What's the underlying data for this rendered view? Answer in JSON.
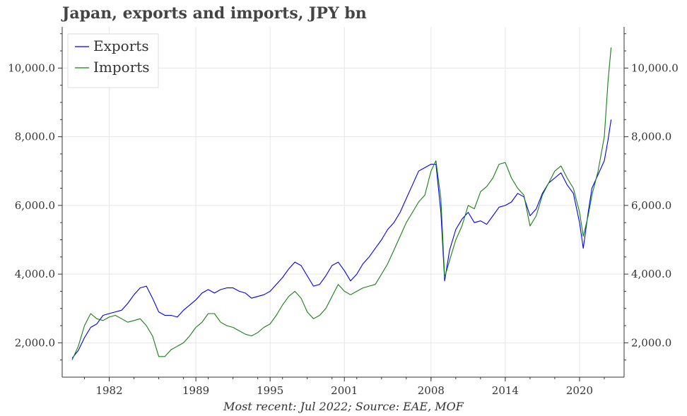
{
  "title": "Japan, exports and imports, JPY bn",
  "caption": "Most recent: Jul 2022; Source: EAE, MOF",
  "chart_data": {
    "type": "line",
    "title": "Japan, exports and imports, JPY bn",
    "xlabel": "",
    "ylabel": "",
    "xlim": [
      1978.2,
      2023.6
    ],
    "ylim": [
      1000,
      11200
    ],
    "x_ticks": [
      1982,
      1989,
      1995,
      2001,
      2008,
      2014,
      2020
    ],
    "x_tick_labels": [
      "1982",
      "1989",
      "1995",
      "2001",
      "2008",
      "2014",
      "2020"
    ],
    "y_ticks": [
      2000,
      4000,
      6000,
      8000,
      10000
    ],
    "y_tick_labels": [
      "2,000.0",
      "4,000.0",
      "6,000.0",
      "8,000.0",
      "10,000.0"
    ],
    "y_axis_both_sides": true,
    "grid": true,
    "legend": "top-left",
    "colors": {
      "exports": "#0000ee",
      "imports": "#138013"
    },
    "series": [
      {
        "name": "Exports",
        "color": "#0000ee",
        "x": [
          1979.0,
          1979.5,
          1980.0,
          1980.5,
          1981.0,
          1981.5,
          1982.0,
          1982.5,
          1983.0,
          1983.5,
          1984.0,
          1984.5,
          1985.0,
          1985.5,
          1986.0,
          1986.5,
          1987.0,
          1987.5,
          1988.0,
          1988.5,
          1989.0,
          1989.5,
          1990.0,
          1990.5,
          1991.0,
          1991.5,
          1992.0,
          1992.5,
          1993.0,
          1993.5,
          1994.0,
          1994.5,
          1995.0,
          1995.5,
          1996.0,
          1996.5,
          1997.0,
          1997.5,
          1998.0,
          1998.5,
          1999.0,
          1999.5,
          2000.0,
          2000.5,
          2001.0,
          2001.5,
          2002.0,
          2002.5,
          2003.0,
          2003.5,
          2004.0,
          2004.5,
          2005.0,
          2005.5,
          2006.0,
          2006.5,
          2007.0,
          2007.5,
          2008.0,
          2008.4,
          2008.8,
          2009.1,
          2009.5,
          2010.0,
          2010.5,
          2011.0,
          2011.5,
          2012.0,
          2012.5,
          2013.0,
          2013.5,
          2014.0,
          2014.5,
          2015.0,
          2015.5,
          2016.0,
          2016.5,
          2017.0,
          2017.5,
          2018.0,
          2018.5,
          2019.0,
          2019.5,
          2020.0,
          2020.3,
          2020.7,
          2021.0,
          2021.5,
          2022.0,
          2022.3,
          2022.55
        ],
        "values": [
          1550,
          1780,
          2150,
          2450,
          2550,
          2800,
          2850,
          2900,
          2950,
          3150,
          3400,
          3600,
          3650,
          3300,
          2900,
          2800,
          2800,
          2750,
          2950,
          3100,
          3250,
          3450,
          3550,
          3450,
          3550,
          3600,
          3600,
          3500,
          3450,
          3300,
          3350,
          3400,
          3500,
          3700,
          3900,
          4150,
          4350,
          4250,
          3950,
          3650,
          3700,
          3950,
          4250,
          4350,
          4100,
          3800,
          4000,
          4300,
          4500,
          4750,
          5000,
          5300,
          5500,
          5800,
          6200,
          6600,
          7000,
          7100,
          7200,
          7200,
          5800,
          3800,
          4700,
          5300,
          5600,
          5800,
          5500,
          5550,
          5450,
          5700,
          5950,
          6000,
          6100,
          6350,
          6250,
          5700,
          5900,
          6350,
          6650,
          6800,
          6950,
          6600,
          6350,
          5500,
          4750,
          5800,
          6500,
          6900,
          7300,
          7900,
          8500
        ]
      },
      {
        "name": "Imports",
        "color": "#138013",
        "x": [
          1979.0,
          1979.5,
          1980.0,
          1980.5,
          1981.0,
          1981.5,
          1982.0,
          1982.5,
          1983.0,
          1983.5,
          1984.0,
          1984.5,
          1985.0,
          1985.5,
          1986.0,
          1986.5,
          1987.0,
          1987.5,
          1988.0,
          1988.5,
          1989.0,
          1989.5,
          1990.0,
          1990.5,
          1991.0,
          1991.5,
          1992.0,
          1992.5,
          1993.0,
          1993.5,
          1994.0,
          1994.5,
          1995.0,
          1995.5,
          1996.0,
          1996.5,
          1997.0,
          1997.5,
          1998.0,
          1998.5,
          1999.0,
          1999.5,
          2000.0,
          2000.5,
          2001.0,
          2001.5,
          2002.0,
          2002.5,
          2003.0,
          2003.5,
          2004.0,
          2004.5,
          2005.0,
          2005.5,
          2006.0,
          2006.5,
          2007.0,
          2007.5,
          2008.0,
          2008.4,
          2008.8,
          2009.1,
          2009.5,
          2010.0,
          2010.5,
          2011.0,
          2011.5,
          2012.0,
          2012.5,
          2013.0,
          2013.5,
          2014.0,
          2014.5,
          2015.0,
          2015.5,
          2016.0,
          2016.5,
          2017.0,
          2017.5,
          2018.0,
          2018.5,
          2019.0,
          2019.5,
          2020.0,
          2020.3,
          2020.7,
          2021.0,
          2021.5,
          2022.0,
          2022.3,
          2022.55
        ],
        "values": [
          1500,
          1900,
          2500,
          2850,
          2700,
          2650,
          2750,
          2800,
          2700,
          2600,
          2650,
          2700,
          2500,
          2200,
          1600,
          1600,
          1800,
          1900,
          2000,
          2200,
          2450,
          2600,
          2850,
          2850,
          2600,
          2500,
          2450,
          2350,
          2250,
          2200,
          2300,
          2450,
          2550,
          2800,
          3100,
          3350,
          3500,
          3300,
          2900,
          2700,
          2800,
          3000,
          3350,
          3700,
          3500,
          3400,
          3500,
          3600,
          3650,
          3700,
          4000,
          4300,
          4700,
          5100,
          5500,
          5800,
          6100,
          6300,
          7000,
          7300,
          6200,
          3900,
          4400,
          5000,
          5400,
          6000,
          5900,
          6400,
          6550,
          6800,
          7200,
          7250,
          6800,
          6500,
          6300,
          5400,
          5700,
          6300,
          6650,
          7000,
          7150,
          6800,
          6500,
          5800,
          5100,
          5700,
          6300,
          7000,
          8000,
          9600,
          10600
        ]
      }
    ]
  }
}
